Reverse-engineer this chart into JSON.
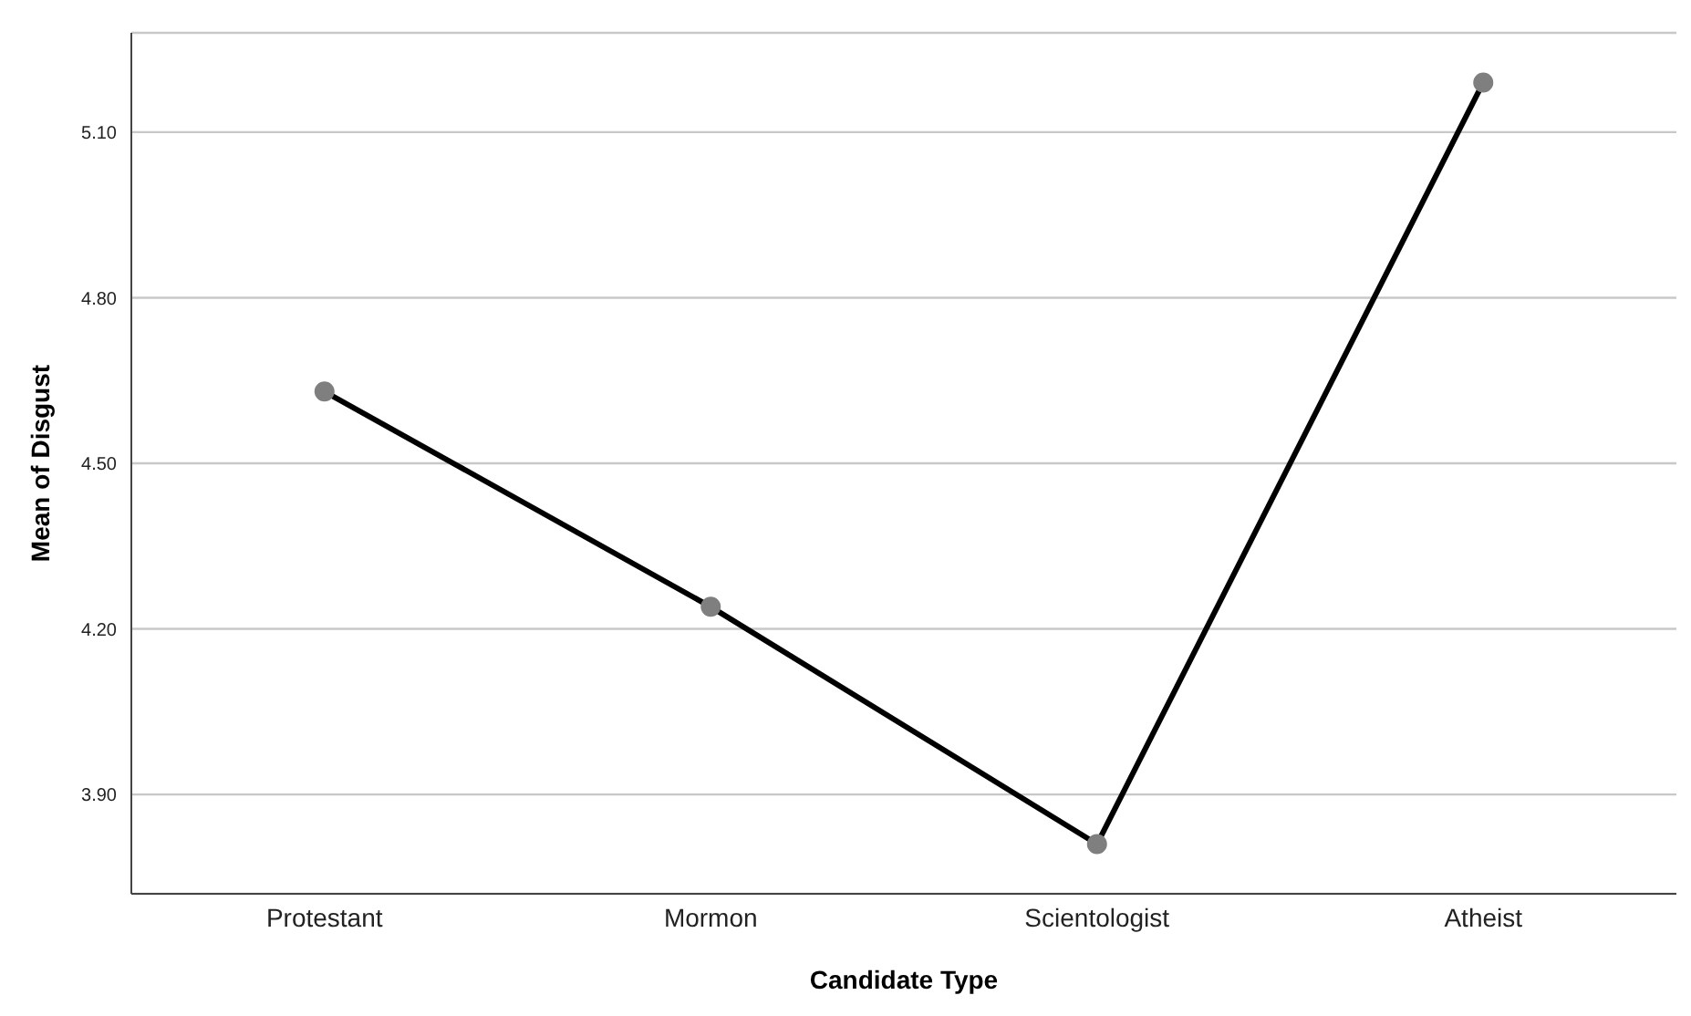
{
  "chart_data": {
    "type": "line",
    "xlabel": "Candidate Type",
    "ylabel": "Mean of Disgust",
    "categories": [
      "Protestant",
      "Mormon",
      "Scientologist",
      "Atheist"
    ],
    "series": [
      {
        "color": "#000000",
        "values": [
          4.63,
          4.24,
          3.81,
          5.19
        ]
      }
    ],
    "ylim": [
      3.72,
      5.28
    ],
    "yticks": [
      {
        "value": 3.9,
        "label": "3.90"
      },
      {
        "value": 4.2,
        "label": "4.20"
      },
      {
        "value": 4.5,
        "label": "4.50"
      },
      {
        "value": 4.8,
        "label": "4.80"
      },
      {
        "value": 5.1,
        "label": "5.10"
      }
    ],
    "grid": "y",
    "marker": "circle",
    "line_style": "solid"
  }
}
